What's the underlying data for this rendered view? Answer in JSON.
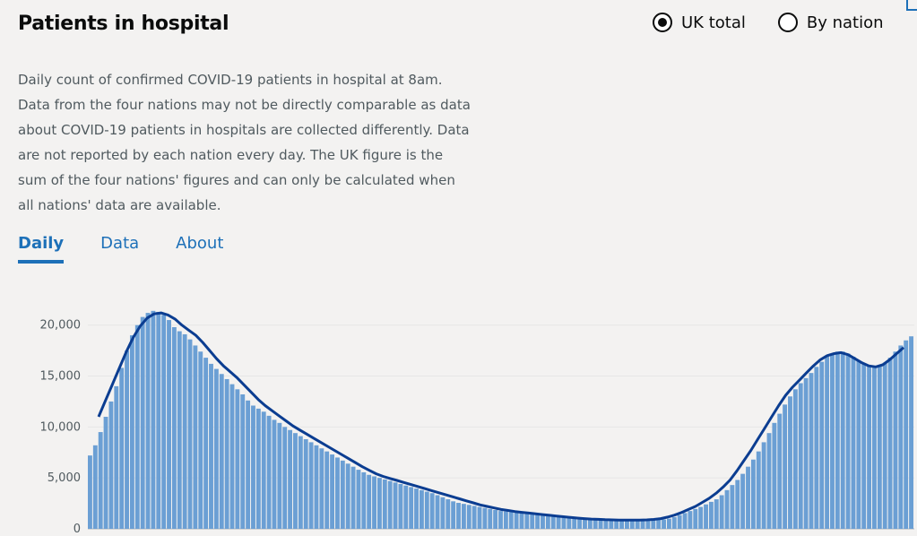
{
  "header": {
    "title": "Patients in hospital",
    "radio_uk": "UK total",
    "radio_nation": "By nation"
  },
  "description": "Daily count of confirmed COVID-19 patients in hospital at 8am. Data from the four nations may not be directly comparable as data about COVID-19 patients in hospitals are collected differently. Data are not reported by each nation every day. The UK figure is the sum of the four nations' figures and can only be calculated when all nations' data are available.",
  "tabs": [
    "Daily",
    "Data",
    "About"
  ],
  "colors": {
    "bar": "#6b9fd4",
    "line": "#0b3d91",
    "tab": "#1d70b8"
  },
  "chart_data": {
    "type": "bar",
    "ylim": [
      0,
      22000
    ],
    "yticks": [
      0,
      5000,
      10000,
      15000,
      20000
    ],
    "ytick_labels": [
      "0",
      "5,000",
      "10,000",
      "15,000",
      "20,000"
    ],
    "values": [
      7200,
      8200,
      9500,
      11000,
      12500,
      14000,
      15800,
      17500,
      19000,
      20000,
      20800,
      21200,
      21400,
      21300,
      21000,
      20500,
      19800,
      19400,
      19100,
      18600,
      18000,
      17400,
      16800,
      16200,
      15700,
      15200,
      14700,
      14200,
      13700,
      13200,
      12600,
      12100,
      11800,
      11500,
      11100,
      10700,
      10400,
      10000,
      9700,
      9400,
      9100,
      8800,
      8500,
      8200,
      7900,
      7600,
      7300,
      7000,
      6700,
      6400,
      6100,
      5800,
      5550,
      5300,
      5150,
      5000,
      4850,
      4700,
      4550,
      4400,
      4250,
      4100,
      3950,
      3800,
      3650,
      3500,
      3300,
      3100,
      2900,
      2700,
      2550,
      2450,
      2350,
      2250,
      2150,
      2050,
      1950,
      1850,
      1750,
      1700,
      1650,
      1600,
      1550,
      1500,
      1450,
      1400,
      1350,
      1300,
      1250,
      1200,
      1150,
      1100,
      1070,
      1040,
      1010,
      990,
      970,
      950,
      930,
      910,
      900,
      890,
      880,
      870,
      860,
      870,
      880,
      890,
      900,
      920,
      1000,
      1150,
      1350,
      1550,
      1750,
      1950,
      2150,
      2400,
      2650,
      2900,
      3300,
      3800,
      4300,
      4800,
      5400,
      6100,
      6800,
      7600,
      8500,
      9400,
      10400,
      11300,
      12200,
      13000,
      13700,
      14300,
      14800,
      15300,
      15900,
      16400,
      16900,
      17200,
      17400,
      17400,
      17200,
      16900,
      16500,
      16200,
      16000,
      15900,
      16000,
      16300,
      16800,
      17400,
      18000,
      18500,
      18900
    ],
    "trend": [
      11000,
      12600,
      14200,
      15800,
      17400,
      18800,
      19900,
      20700,
      21100,
      21200,
      21000,
      20600,
      20000,
      19500,
      19000,
      18300,
      17500,
      16700,
      16000,
      15400,
      14800,
      14100,
      13400,
      12700,
      12100,
      11600,
      11100,
      10600,
      10100,
      9700,
      9300,
      8900,
      8500,
      8100,
      7700,
      7300,
      6900,
      6500,
      6100,
      5750,
      5400,
      5150,
      4950,
      4750,
      4550,
      4350,
      4150,
      3950,
      3750,
      3550,
      3350,
      3150,
      2950,
      2750,
      2550,
      2350,
      2200,
      2050,
      1900,
      1800,
      1700,
      1620,
      1550,
      1480,
      1400,
      1330,
      1260,
      1190,
      1120,
      1060,
      1000,
      960,
      930,
      900,
      880,
      860,
      850,
      850,
      860,
      880,
      920,
      1000,
      1150,
      1350,
      1600,
      1900,
      2200,
      2600,
      3000,
      3500,
      4100,
      4800,
      5700,
      6700,
      7700,
      8800,
      9900,
      11000,
      12100,
      13100,
      13900,
      14600,
      15300,
      16000,
      16600,
      17000,
      17200,
      17300,
      17100,
      16700,
      16300,
      16000,
      15900,
      16100,
      16600,
      17200,
      17800
    ]
  }
}
